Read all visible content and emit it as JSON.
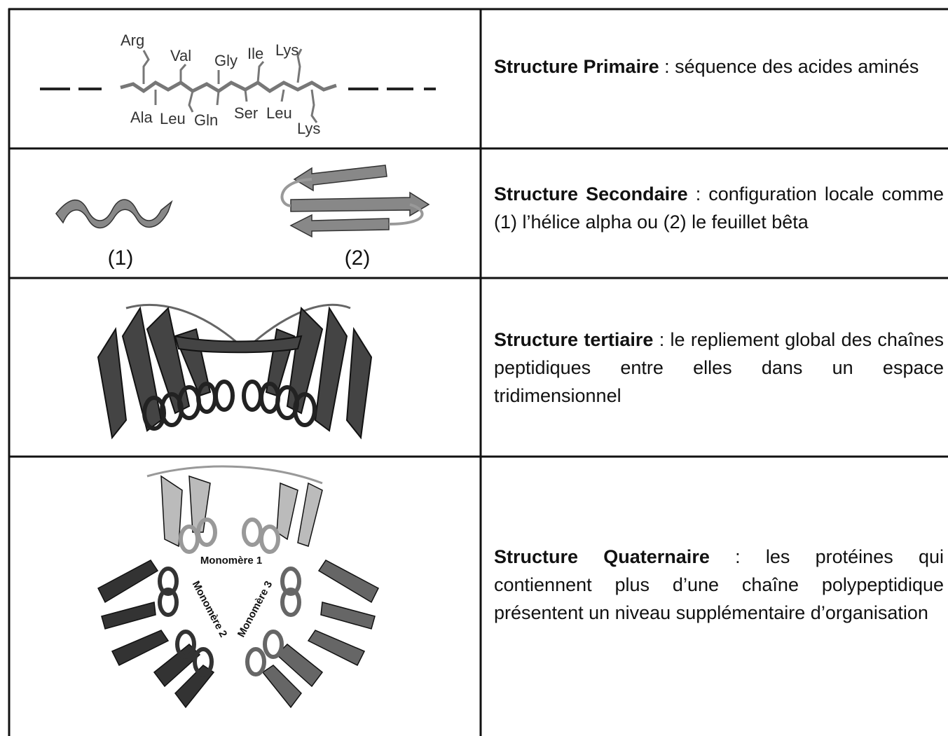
{
  "table": {
    "rows": [
      {
        "figure": {
          "labels": [
            "Arg",
            "Val",
            "Gly",
            "Ile",
            "Lys",
            "Ala",
            "Leu",
            "Gln",
            "Ser",
            "Leu",
            "Lys"
          ]
        },
        "term": "Structure Primaire",
        "description": ": séquence des acides aminés"
      },
      {
        "figure": {
          "labels": [
            "(1)",
            "(2)"
          ]
        },
        "term": "Structure Secondaire",
        "description": ": configuration locale comme (1) l’hélice alpha ou (2) le feuillet bêta"
      },
      {
        "term": "Structure tertiaire",
        "description": ": le repliement global des chaînes peptidiques entre elles dans un espace tridimensionnel"
      },
      {
        "figure": {
          "labels": [
            "Monomère 1",
            "Monomère 2",
            "Monomère 3"
          ]
        },
        "term": "Structure Quaternaire",
        "description": ": les protéines qui contiennent plus d’une chaîne polypeptidique présentent un niveau supplémentaire d’organisation"
      }
    ]
  }
}
